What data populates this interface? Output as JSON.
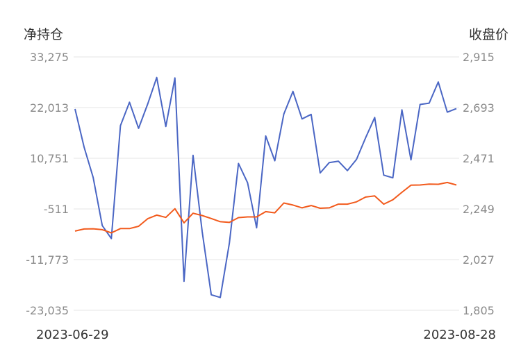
{
  "chart_data": {
    "type": "line",
    "left_axis_title": "净持仓",
    "right_axis_title": "收盘价",
    "left_ticks": [
      "33,275",
      "22,013",
      "10,751",
      "-511",
      "-11,773",
      "-23,035"
    ],
    "right_ticks": [
      "2,915",
      "2,693",
      "2,471",
      "2,249",
      "2,027",
      "1,805"
    ],
    "left_ylim": [
      -23035,
      33275
    ],
    "right_ylim": [
      1805,
      2915
    ],
    "x_start_label": "2023-06-29",
    "x_end_label": "2023-08-28",
    "grid": true,
    "series": [
      {
        "axis": "left",
        "color": "#4a66c4",
        "values": [
          21700,
          13200,
          6500,
          -4200,
          -7100,
          18000,
          23200,
          17400,
          22800,
          28700,
          17800,
          28600,
          -16600,
          11400,
          -5500,
          -19600,
          -20200,
          -8100,
          9600,
          5300,
          -4700,
          15700,
          10200,
          20600,
          25600,
          19500,
          20500,
          7500,
          9800,
          10100,
          8000,
          10500,
          15300,
          19800,
          7000,
          6400,
          21500,
          10400,
          22700,
          23000,
          27700,
          21000,
          21800
        ]
      },
      {
        "axis": "right",
        "color": "#f25a1c",
        "values": [
          2152,
          2161,
          2162,
          2158,
          2144,
          2163,
          2163,
          2173,
          2206,
          2222,
          2212,
          2250,
          2188,
          2230,
          2220,
          2207,
          2193,
          2190,
          2211,
          2214,
          2214,
          2237,
          2232,
          2275,
          2266,
          2254,
          2264,
          2252,
          2254,
          2270,
          2270,
          2280,
          2301,
          2306,
          2270,
          2289,
          2322,
          2353,
          2354,
          2358,
          2357,
          2365,
          2354
        ]
      }
    ]
  }
}
